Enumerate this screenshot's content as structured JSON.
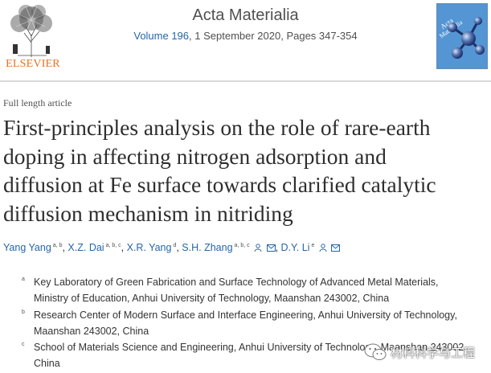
{
  "publisher": {
    "logo_text": "ELSEVIER",
    "logo_icon": "elsevier-tree-icon"
  },
  "journal": {
    "title": "Acta Materialia",
    "volume_link": "Volume 196",
    "issue_rest": ", 1 September 2020, Pages 347-354",
    "cover_icon": "journal-cover-molecule-icon"
  },
  "article": {
    "type": "Full length article",
    "title_lines": [
      "First-principles analysis on the role of rare-earth",
      "doping in affecting nitrogen adsorption and",
      "diffusion at Fe surface towards clarified catalytic",
      "diffusion mechanism in nitriding"
    ]
  },
  "authors": [
    {
      "name": "Yang Yang",
      "sup": "a, b"
    },
    {
      "name": "X.Z. Dai",
      "sup": "a, b, c"
    },
    {
      "name": "X.R. Yang",
      "sup": "d"
    },
    {
      "name": "S.H. Zhang",
      "sup": "a, b, c"
    },
    {
      "name": "D.Y. Li",
      "sup": "e"
    }
  ],
  "affiliations": [
    {
      "label": "a",
      "lines": [
        "Key Laboratory of Green Fabrication and Surface Technology of Advanced Metal Materials,",
        "Ministry of Education, Anhui University of Technology, Maanshan 243002, China"
      ]
    },
    {
      "label": "b",
      "lines": [
        "Research Center of Modern Surface and Interface Engineering, Anhui University of Technology,",
        "Maanshan 243002, China"
      ]
    },
    {
      "label": "c",
      "lines": [
        "School of Materials Science and Engineering, Anhui University of Technology, Maanshan 243002,",
        "China"
      ]
    }
  ],
  "watermark": {
    "text": "材料科学与工程",
    "icon": "wechat-icon"
  },
  "colors": {
    "link": "#2466a8",
    "publisher": "#e9711c",
    "text": "#2e2e2e"
  }
}
